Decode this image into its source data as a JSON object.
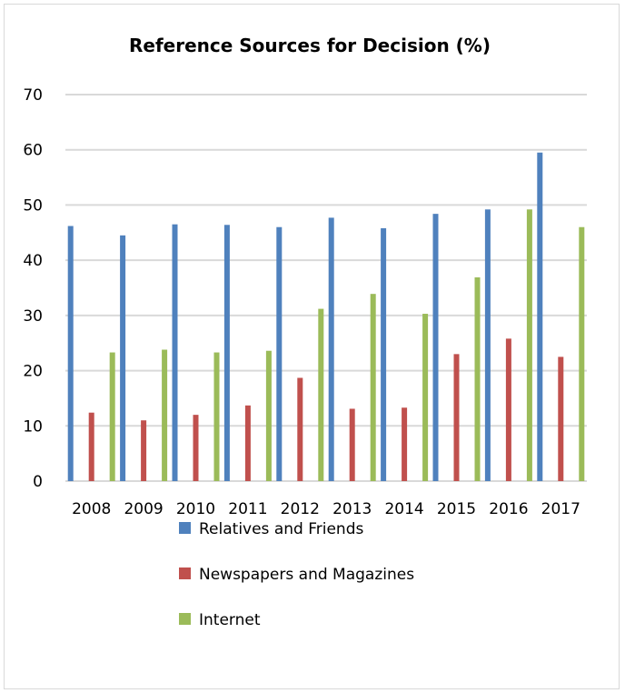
{
  "chart_data": {
    "type": "bar",
    "title": "Reference Sources for Decision (%)",
    "xlabel": "",
    "ylabel": "",
    "ylim": [
      0,
      70
    ],
    "yticks": [
      "0",
      "10",
      "20",
      "30",
      "40",
      "50",
      "60",
      "70"
    ],
    "categories": [
      "2008",
      "2009",
      "2010",
      "2011",
      "2012",
      "2013",
      "2014",
      "2015",
      "2016",
      "2017"
    ],
    "grid": true,
    "legend_position": "bottom",
    "series": [
      {
        "name": "Relatives and Friends",
        "color": "#4f81bd",
        "values": [
          46.2,
          44.5,
          46.5,
          46.4,
          46.0,
          47.7,
          45.8,
          48.4,
          49.2,
          59.5
        ]
      },
      {
        "name": "Newspapers and Magazines",
        "color": "#c0504d",
        "values": [
          12.4,
          11.0,
          12.0,
          13.7,
          18.7,
          13.1,
          13.3,
          23.0,
          25.8,
          22.5
        ]
      },
      {
        "name": "Internet",
        "color": "#9bbb59",
        "values": [
          23.3,
          23.8,
          23.3,
          23.6,
          31.2,
          33.9,
          30.3,
          36.9,
          49.2,
          46.0
        ]
      }
    ]
  }
}
